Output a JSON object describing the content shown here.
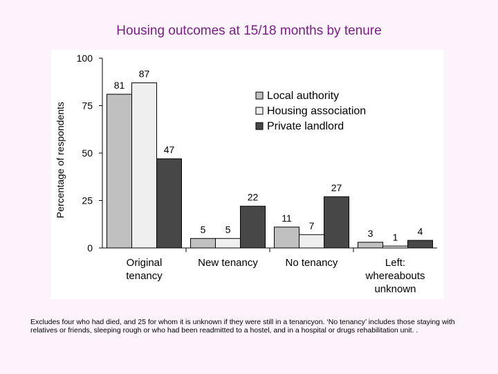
{
  "page": {
    "title": "Housing outcomes at 15/18 months by tenure",
    "footnote": "Excludes four who had died, and 25 for whom it is unknown if they were still in a tenancyon.  ‘No tenancy’ includes those staying with relatives or friends, sleeping rough or who had been readmitted to a hostel, and in a hospital or drugs rehabilitation unit. ."
  },
  "colors": {
    "title": "#7a1f86",
    "background": "#fdf3fc",
    "local_authority": "#c0c0c0",
    "housing_association": "#efefef",
    "private_landlord": "#474747"
  },
  "chart_data": {
    "type": "bar",
    "title": "",
    "xlabel": "",
    "ylabel": "Percentage of respondents",
    "ylim": [
      0,
      100
    ],
    "yticks": [
      0,
      25,
      50,
      75,
      100
    ],
    "categories": [
      [
        "Original",
        "tenancy"
      ],
      [
        "New tenancy"
      ],
      [
        "No tenancy"
      ],
      [
        "Left:",
        "whereabouts",
        "unknown"
      ]
    ],
    "series": [
      {
        "name": "Local authority",
        "values": [
          81,
          5,
          11,
          3
        ]
      },
      {
        "name": "Housing association",
        "values": [
          87,
          5,
          7,
          1
        ]
      },
      {
        "name": "Private landlord",
        "values": [
          47,
          22,
          27,
          4
        ]
      }
    ],
    "legend_position": "top-right",
    "grid": false
  }
}
